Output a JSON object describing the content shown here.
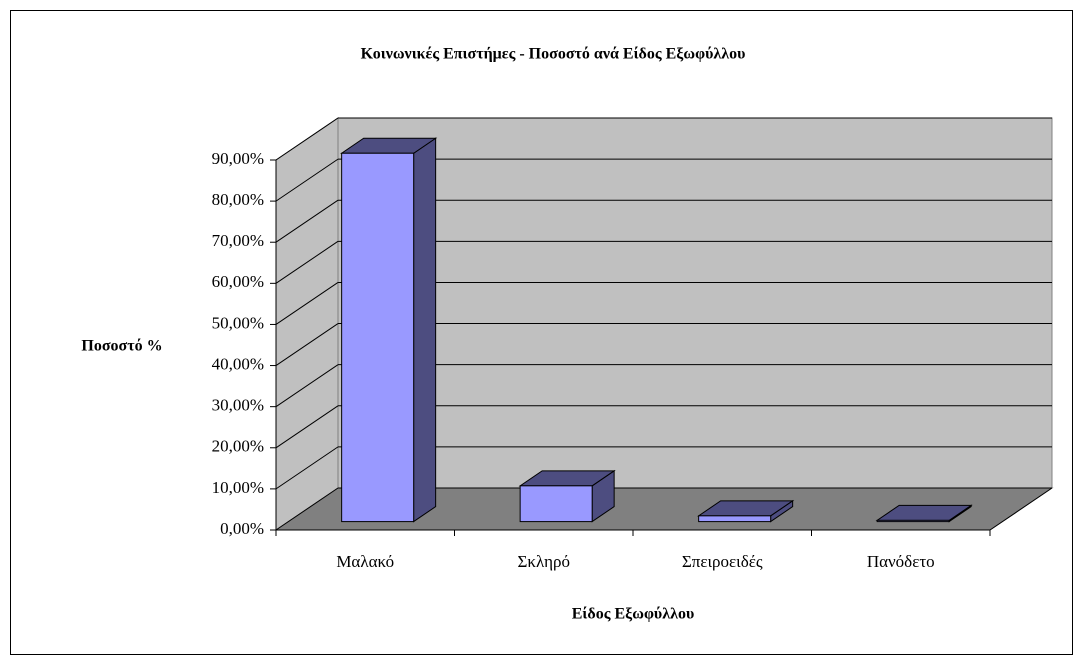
{
  "chart_data": {
    "type": "bar3d",
    "title": "Κοινωνικές Επιστήμες - Ποσοστό ανά Είδος Εξωφύλλου",
    "x_label": "Είδος Εξωφύλλου",
    "y_label": "Ποσοστό %",
    "categories": [
      "Μαλακό",
      "Σκληρό",
      "Σπειροειδές",
      "Πανόδετο"
    ],
    "values": [
      89.6,
      8.7,
      1.4,
      0.3
    ],
    "color": "#9999ff",
    "side_color": "#4d4d80",
    "ylim": [
      0,
      90
    ],
    "yticks": [
      {
        "value": 0,
        "label": "0,00%"
      },
      {
        "value": 10,
        "label": "10,00%"
      },
      {
        "value": 20,
        "label": "20,00%"
      },
      {
        "value": 30,
        "label": "30,00%"
      },
      {
        "value": 40,
        "label": "40,00%"
      },
      {
        "value": 50,
        "label": "50,00%"
      },
      {
        "value": 60,
        "label": "60,00%"
      },
      {
        "value": 70,
        "label": "70,00%"
      },
      {
        "value": 80,
        "label": "80,00%"
      },
      {
        "value": 90,
        "label": "90,00%"
      }
    ],
    "grid": true
  }
}
